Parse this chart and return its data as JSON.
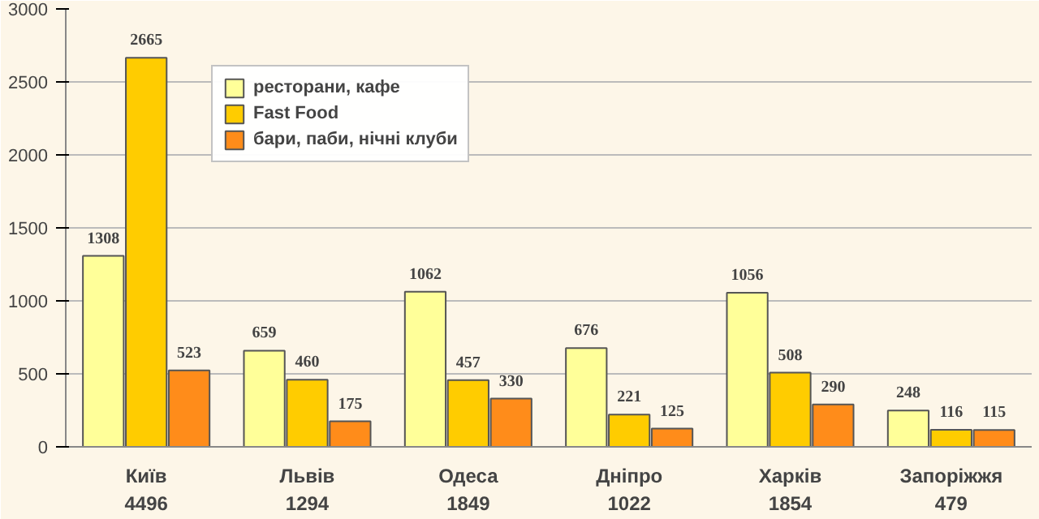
{
  "chart_data": {
    "type": "bar",
    "categories": [
      "Київ\n4496",
      "Львів\n1294",
      "Одеса\n1849",
      "Дніпро\n1022",
      "Харків\n1854",
      "Запоріжжя\n479"
    ],
    "series": [
      {
        "name": "ресторани, кафе",
        "color": "#ffff99",
        "values": [
          1308,
          659,
          1062,
          676,
          1056,
          248
        ]
      },
      {
        "name": "Fast Food",
        "color": "#ffcc00",
        "values": [
          2665,
          460,
          457,
          221,
          508,
          116
        ]
      },
      {
        "name": "бари, паби, нічні клуби",
        "color": "#ff8c1a",
        "values": [
          523,
          175,
          330,
          125,
          290,
          115
        ]
      }
    ],
    "ylim": [
      0,
      3000
    ],
    "yticks": [
      0,
      500,
      1000,
      1500,
      2000,
      2500,
      3000
    ],
    "grid": "y",
    "legend": "top",
    "data_labels": true
  }
}
